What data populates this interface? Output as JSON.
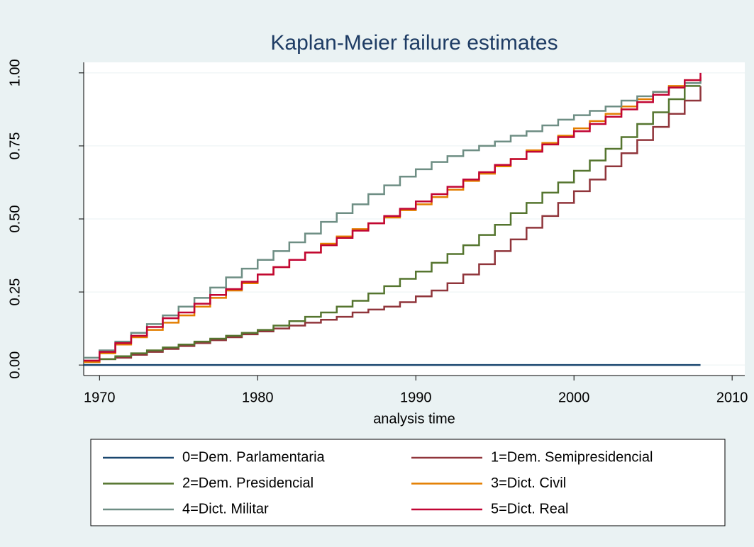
{
  "chart_data": {
    "type": "step",
    "title": "Kaplan-Meier failure estimates",
    "x_label": "analysis time",
    "x": [
      1969,
      1970,
      1971,
      1972,
      1973,
      1974,
      1975,
      1976,
      1977,
      1978,
      1979,
      1980,
      1981,
      1982,
      1983,
      1984,
      1985,
      1986,
      1987,
      1988,
      1989,
      1990,
      1991,
      1992,
      1993,
      1994,
      1995,
      1996,
      1997,
      1998,
      1999,
      2000,
      2001,
      2002,
      2003,
      2004,
      2005,
      2006,
      2007,
      2008
    ],
    "series": [
      {
        "name": "0=Dem. Parlamentaria",
        "color": "#1a476f",
        "values": [
          0,
          0,
          0,
          0,
          0,
          0,
          0,
          0,
          0,
          0,
          0,
          0,
          0,
          0,
          0,
          0,
          0,
          0,
          0,
          0,
          0,
          0,
          0,
          0,
          0,
          0,
          0,
          0,
          0,
          0,
          0,
          0,
          0,
          0,
          0,
          0,
          0,
          0,
          0,
          0
        ]
      },
      {
        "name": "1=Dem. Semipresidencial",
        "color": "#90353b",
        "values": [
          0.015,
          0.02,
          0.025,
          0.035,
          0.045,
          0.055,
          0.065,
          0.075,
          0.085,
          0.095,
          0.105,
          0.115,
          0.125,
          0.135,
          0.145,
          0.155,
          0.165,
          0.18,
          0.19,
          0.2,
          0.215,
          0.235,
          0.255,
          0.28,
          0.31,
          0.345,
          0.39,
          0.43,
          0.47,
          0.51,
          0.555,
          0.595,
          0.635,
          0.68,
          0.725,
          0.77,
          0.815,
          0.86,
          0.905,
          0.955
        ]
      },
      {
        "name": "2=Dem. Presidencial",
        "color": "#55752f",
        "values": [
          0.01,
          0.02,
          0.03,
          0.04,
          0.05,
          0.06,
          0.07,
          0.08,
          0.09,
          0.1,
          0.11,
          0.12,
          0.135,
          0.15,
          0.165,
          0.18,
          0.2,
          0.22,
          0.245,
          0.27,
          0.295,
          0.32,
          0.35,
          0.38,
          0.41,
          0.445,
          0.48,
          0.52,
          0.555,
          0.59,
          0.625,
          0.665,
          0.7,
          0.74,
          0.78,
          0.825,
          0.865,
          0.91,
          0.955,
          0.955
        ]
      },
      {
        "name": "3=Dict. Civil",
        "color": "#e37e00",
        "values": [
          0.01,
          0.04,
          0.07,
          0.095,
          0.12,
          0.145,
          0.17,
          0.2,
          0.23,
          0.255,
          0.28,
          0.31,
          0.335,
          0.36,
          0.385,
          0.415,
          0.44,
          0.465,
          0.485,
          0.505,
          0.53,
          0.55,
          0.575,
          0.6,
          0.63,
          0.655,
          0.68,
          0.705,
          0.735,
          0.76,
          0.785,
          0.81,
          0.835,
          0.86,
          0.885,
          0.91,
          0.935,
          0.955,
          0.975,
          0.985
        ]
      },
      {
        "name": "4=Dict. Militar",
        "color": "#6e8e84",
        "values": [
          0.025,
          0.05,
          0.08,
          0.11,
          0.14,
          0.17,
          0.2,
          0.23,
          0.265,
          0.3,
          0.33,
          0.36,
          0.39,
          0.42,
          0.45,
          0.49,
          0.52,
          0.55,
          0.585,
          0.615,
          0.645,
          0.67,
          0.695,
          0.715,
          0.735,
          0.75,
          0.765,
          0.785,
          0.8,
          0.82,
          0.84,
          0.855,
          0.87,
          0.885,
          0.905,
          0.92,
          0.935,
          0.95,
          0.965,
          0.975
        ]
      },
      {
        "name": "5=Dict. Real",
        "color": "#c10534",
        "values": [
          0.015,
          0.045,
          0.075,
          0.1,
          0.13,
          0.16,
          0.18,
          0.21,
          0.24,
          0.26,
          0.285,
          0.31,
          0.335,
          0.36,
          0.385,
          0.41,
          0.435,
          0.46,
          0.485,
          0.51,
          0.535,
          0.56,
          0.585,
          0.61,
          0.635,
          0.66,
          0.685,
          0.705,
          0.73,
          0.755,
          0.78,
          0.8,
          0.825,
          0.85,
          0.875,
          0.9,
          0.925,
          0.95,
          0.975,
          1.0
        ]
      }
    ],
    "xlim": [
      1969,
      2010.8
    ],
    "xticks": [
      1970,
      1980,
      1990,
      2000,
      2010
    ],
    "ylim": [
      -0.036,
      1.036
    ],
    "yticks": [
      {
        "value": 0,
        "label": "0.00"
      },
      {
        "value": 0.25,
        "label": "0.25"
      },
      {
        "value": 0.5,
        "label": "0.50"
      },
      {
        "value": 0.75,
        "label": "0.75"
      },
      {
        "value": 1,
        "label": "1.00"
      }
    ],
    "grid": true,
    "legend": "bottom"
  }
}
